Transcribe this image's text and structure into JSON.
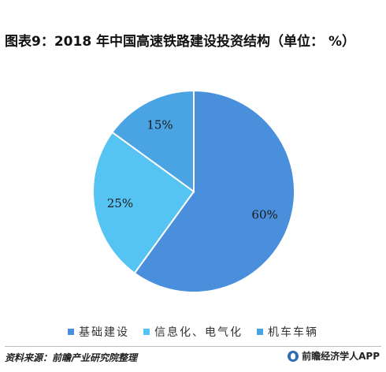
{
  "chart_data": {
    "type": "pie",
    "title": "图表9：2018 年中国高速铁路建设投资结构（单位：  %）",
    "categories": [
      "基础建设",
      "信息化、电气化",
      "机车车辆"
    ],
    "values": [
      60,
      25,
      15
    ],
    "value_labels": [
      "60%",
      "25%",
      "15%"
    ],
    "colors": [
      "#4a8fdc",
      "#56c4f2",
      "#4aa3e3"
    ],
    "legend_position": "bottom"
  },
  "footer": {
    "source": "资料来源：前瞻产业研究院整理",
    "brand": "前瞻经济学人APP"
  }
}
